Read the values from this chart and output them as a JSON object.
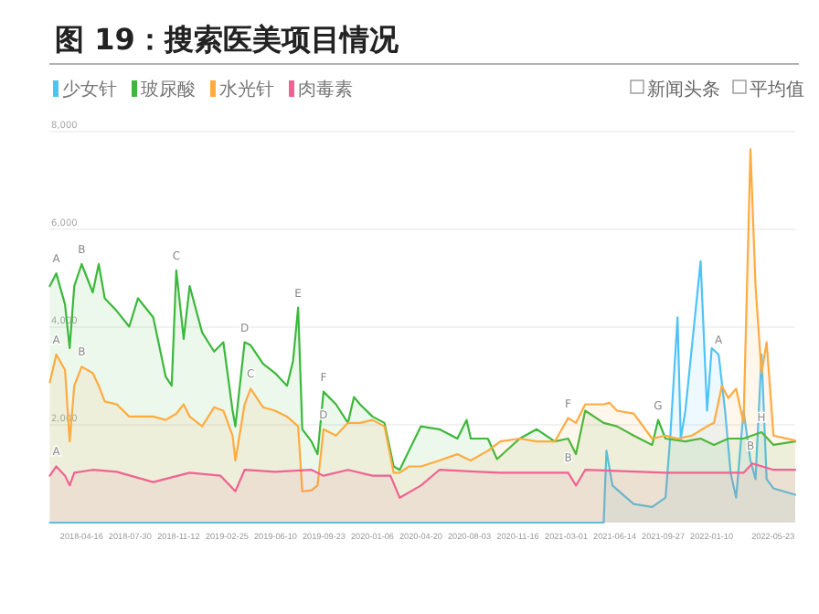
{
  "chart_data": {
    "type": "area",
    "title": "图 19：搜索医美项目情况",
    "xlim": [
      "2018-02-05",
      "2022-07-10"
    ],
    "ylim": [
      0,
      8000
    ],
    "xticks": [
      {
        "value": "2018-04-16",
        "label": "2018-04-16"
      },
      {
        "value": "2018-07-30",
        "label": "2018-07-30"
      },
      {
        "value": "2018-11-12",
        "label": "2018-11-12"
      },
      {
        "value": "2019-02-25",
        "label": "2019-02-25"
      },
      {
        "value": "2019-06-10",
        "label": "2019-06-10"
      },
      {
        "value": "2019-09-23",
        "label": "2019-09-23"
      },
      {
        "value": "2020-01-06",
        "label": "2020-01-06"
      },
      {
        "value": "2020-04-20",
        "label": "2020-04-20"
      },
      {
        "value": "2020-08-03",
        "label": "2020-08-03"
      },
      {
        "value": "2020-11-16",
        "label": "2020-11-16"
      },
      {
        "value": "2021-03-01",
        "label": "2021-03-01"
      },
      {
        "value": "2021-06-14",
        "label": "2021-06-14"
      },
      {
        "value": "2021-09-27",
        "label": "2021-09-27"
      },
      {
        "value": "2022-01-10",
        "label": "2022-01-10"
      },
      {
        "value": "2022-05-23",
        "label": "2022-05-23"
      }
    ],
    "yticks": [
      {
        "value": 2000,
        "label": "2,000"
      },
      {
        "value": 4000,
        "label": "4,000"
      },
      {
        "value": 6000,
        "label": "6,000"
      },
      {
        "value": 8000,
        "label": "8,000"
      }
    ],
    "grid": "y",
    "legend": "top left",
    "series": [
      {
        "name": "少女针",
        "color": "#4fc3f7",
        "x": [
          "2018-02-06",
          "2021-05-21",
          "2021-05-27",
          "2021-06-09",
          "2021-07-25",
          "2021-09-03",
          "2021-10-02",
          "2021-10-12",
          "2021-10-28",
          "2021-11-04",
          "2021-11-14",
          "2021-12-17",
          "2021-12-31",
          "2022-01-10",
          "2022-01-25",
          "2022-02-08",
          "2022-02-20",
          "2022-03-04",
          "2022-03-20",
          "2022-04-04",
          "2022-04-15",
          "2022-04-28",
          "2022-05-09",
          "2022-05-24",
          "2022-07-10"
        ],
        "values": [
          0,
          0,
          1470,
          760,
          380,
          320,
          510,
          1720,
          4200,
          1720,
          2290,
          5350,
          2290,
          3570,
          3440,
          2290,
          1020,
          510,
          2290,
          1270,
          890,
          3440,
          890,
          700,
          570
        ]
      },
      {
        "name": "玻尿酸",
        "color": "#3cb83c",
        "x": [
          "2018-02-06",
          "2018-02-20",
          "2018-03-11",
          "2018-03-21",
          "2018-03-31",
          "2018-04-16",
          "2018-05-10",
          "2018-05-23",
          "2018-06-05",
          "2018-07-01",
          "2018-07-28",
          "2018-08-16",
          "2018-09-18",
          "2018-10-15",
          "2018-10-28",
          "2018-11-07",
          "2018-11-23",
          "2018-12-06",
          "2019-01-02",
          "2019-01-28",
          "2019-02-17",
          "2019-03-09",
          "2019-03-15",
          "2019-04-04",
          "2019-04-17",
          "2019-05-14",
          "2019-06-09",
          "2019-07-05",
          "2019-07-18",
          "2019-07-29",
          "2019-08-07",
          "2019-08-27",
          "2019-09-09",
          "2019-09-22",
          "2019-10-19",
          "2019-11-14",
          "2019-11-27",
          "2019-12-10",
          "2020-01-06",
          "2020-02-01",
          "2020-02-21",
          "2020-03-05",
          "2020-03-25",
          "2020-04-20",
          "2020-05-30",
          "2020-07-08",
          "2020-07-28",
          "2020-08-06",
          "2020-09-12",
          "2020-10-02",
          "2020-11-20",
          "2020-12-27",
          "2021-02-04",
          "2021-03-05",
          "2021-03-22",
          "2021-04-11",
          "2021-05-21",
          "2021-06-19",
          "2021-07-25",
          "2021-09-03",
          "2021-09-16",
          "2021-10-02",
          "2021-11-14",
          "2021-12-17",
          "2022-01-15",
          "2022-02-15",
          "2022-03-20",
          "2022-04-28",
          "2022-05-24",
          "2022-07-10"
        ],
        "values": [
          4840,
          5100,
          4460,
          3570,
          4840,
          5290,
          4710,
          5290,
          4590,
          4330,
          4010,
          4590,
          4200,
          2990,
          2800,
          5160,
          3760,
          4840,
          3890,
          3500,
          3690,
          2290,
          1970,
          3690,
          3630,
          3250,
          3060,
          2800,
          3310,
          4400,
          1910,
          1660,
          1400,
          2680,
          2420,
          2040,
          2570,
          2420,
          2170,
          2040,
          1150,
          1080,
          1470,
          1970,
          1910,
          1720,
          2100,
          1720,
          1720,
          1300,
          1720,
          1910,
          1660,
          1720,
          1400,
          2290,
          2040,
          1970,
          1780,
          1590,
          2100,
          1720,
          1660,
          1720,
          1590,
          1720,
          1720,
          1850,
          1590,
          1660
        ]
      },
      {
        "name": "水光针",
        "color": "#ffab40",
        "x": [
          "2018-02-06",
          "2018-02-20",
          "2018-03-11",
          "2018-03-21",
          "2018-03-31",
          "2018-04-16",
          "2018-05-10",
          "2018-05-23",
          "2018-06-05",
          "2018-07-01",
          "2018-07-28",
          "2018-08-23",
          "2018-09-18",
          "2018-10-15",
          "2018-11-07",
          "2018-11-23",
          "2018-12-06",
          "2019-01-02",
          "2019-01-28",
          "2019-02-17",
          "2019-03-09",
          "2019-03-15",
          "2019-04-04",
          "2019-04-17",
          "2019-05-14",
          "2019-06-09",
          "2019-07-05",
          "2019-07-29",
          "2019-08-07",
          "2019-08-27",
          "2019-09-09",
          "2019-09-22",
          "2019-10-19",
          "2019-11-14",
          "2019-12-10",
          "2020-01-06",
          "2020-02-01",
          "2020-02-21",
          "2020-03-05",
          "2020-03-25",
          "2020-04-20",
          "2020-05-30",
          "2020-07-08",
          "2020-08-06",
          "2020-09-12",
          "2020-10-09",
          "2020-11-20",
          "2020-12-27",
          "2021-02-04",
          "2021-03-05",
          "2021-03-22",
          "2021-04-11",
          "2021-05-21",
          "2021-06-03",
          "2021-06-19",
          "2021-07-25",
          "2021-09-03",
          "2021-10-02",
          "2021-10-28",
          "2021-11-28",
          "2021-12-31",
          "2022-01-15",
          "2022-02-01",
          "2022-02-15",
          "2022-03-04",
          "2022-03-20",
          "2022-04-04",
          "2022-04-15",
          "2022-04-28",
          "2022-05-09",
          "2022-05-24",
          "2022-07-10"
        ],
        "values": [
          2870,
          3440,
          3120,
          1660,
          2800,
          3190,
          3060,
          2800,
          2480,
          2420,
          2170,
          2170,
          2170,
          2100,
          2230,
          2420,
          2170,
          1970,
          2360,
          2290,
          1780,
          1270,
          2420,
          2740,
          2360,
          2290,
          2170,
          1970,
          640,
          660,
          760,
          1910,
          1780,
          2040,
          2040,
          2100,
          1970,
          1020,
          1020,
          1150,
          1150,
          1270,
          1400,
          1270,
          1470,
          1660,
          1720,
          1660,
          1660,
          2140,
          2040,
          2420,
          2420,
          2450,
          2290,
          2230,
          1720,
          1780,
          1720,
          1780,
          1970,
          2040,
          2800,
          2550,
          2740,
          2040,
          7640,
          4840,
          3060,
          3690,
          1780,
          1680
        ]
      },
      {
        "name": "肉毒素",
        "color": "#f06292",
        "x": [
          "2018-02-06",
          "2018-02-20",
          "2018-03-11",
          "2018-03-21",
          "2018-03-31",
          "2018-05-10",
          "2018-07-01",
          "2018-09-18",
          "2018-12-06",
          "2019-02-11",
          "2019-03-15",
          "2019-04-04",
          "2019-06-09",
          "2019-08-27",
          "2019-09-22",
          "2019-11-14",
          "2020-01-06",
          "2020-02-14",
          "2020-03-05",
          "2020-04-20",
          "2020-05-30",
          "2020-10-09",
          "2021-03-05",
          "2021-03-22",
          "2021-04-11",
          "2021-10-02",
          "2022-03-20",
          "2022-04-08",
          "2022-05-24",
          "2022-07-10"
        ],
        "values": [
          960,
          1150,
          960,
          760,
          1020,
          1080,
          1040,
          830,
          1020,
          960,
          640,
          1080,
          1040,
          1080,
          960,
          1080,
          960,
          960,
          510,
          760,
          1080,
          1020,
          1020,
          760,
          1080,
          1020,
          1020,
          1210,
          1080,
          1080
        ]
      }
    ],
    "annotations": [
      "新闻头条",
      "平均值",
      {
        "text": "A",
        "x": "2018-02-20",
        "y": 5100
      },
      {
        "text": "B",
        "x": "2018-04-16",
        "y": 5290
      },
      {
        "text": "C",
        "x": "2018-11-07",
        "y": 5160
      },
      {
        "text": "D",
        "x": "2019-04-04",
        "y": 3690
      },
      {
        "text": "E",
        "x": "2019-07-29",
        "y": 4400
      },
      {
        "text": "F",
        "x": "2019-09-22",
        "y": 2680
      },
      {
        "text": "A",
        "x": "2018-02-20",
        "y": 3440
      },
      {
        "text": "B",
        "x": "2018-04-16",
        "y": 3190
      },
      {
        "text": "C",
        "x": "2019-04-17",
        "y": 2740
      },
      {
        "text": "D",
        "x": "2019-09-22",
        "y": 1910
      },
      {
        "text": "A",
        "x": "2018-02-20",
        "y": 1150
      },
      {
        "text": "F",
        "x": "2021-03-05",
        "y": 2140
      },
      {
        "text": "B",
        "x": "2021-03-05",
        "y": 1020
      },
      {
        "text": "G",
        "x": "2021-09-16",
        "y": 2100
      },
      {
        "text": "A",
        "x": "2022-01-25",
        "y": 3440
      },
      {
        "text": "B",
        "x": "2022-04-04",
        "y": 1270
      },
      {
        "text": "H",
        "x": "2022-04-28",
        "y": 1850
      }
    ]
  }
}
